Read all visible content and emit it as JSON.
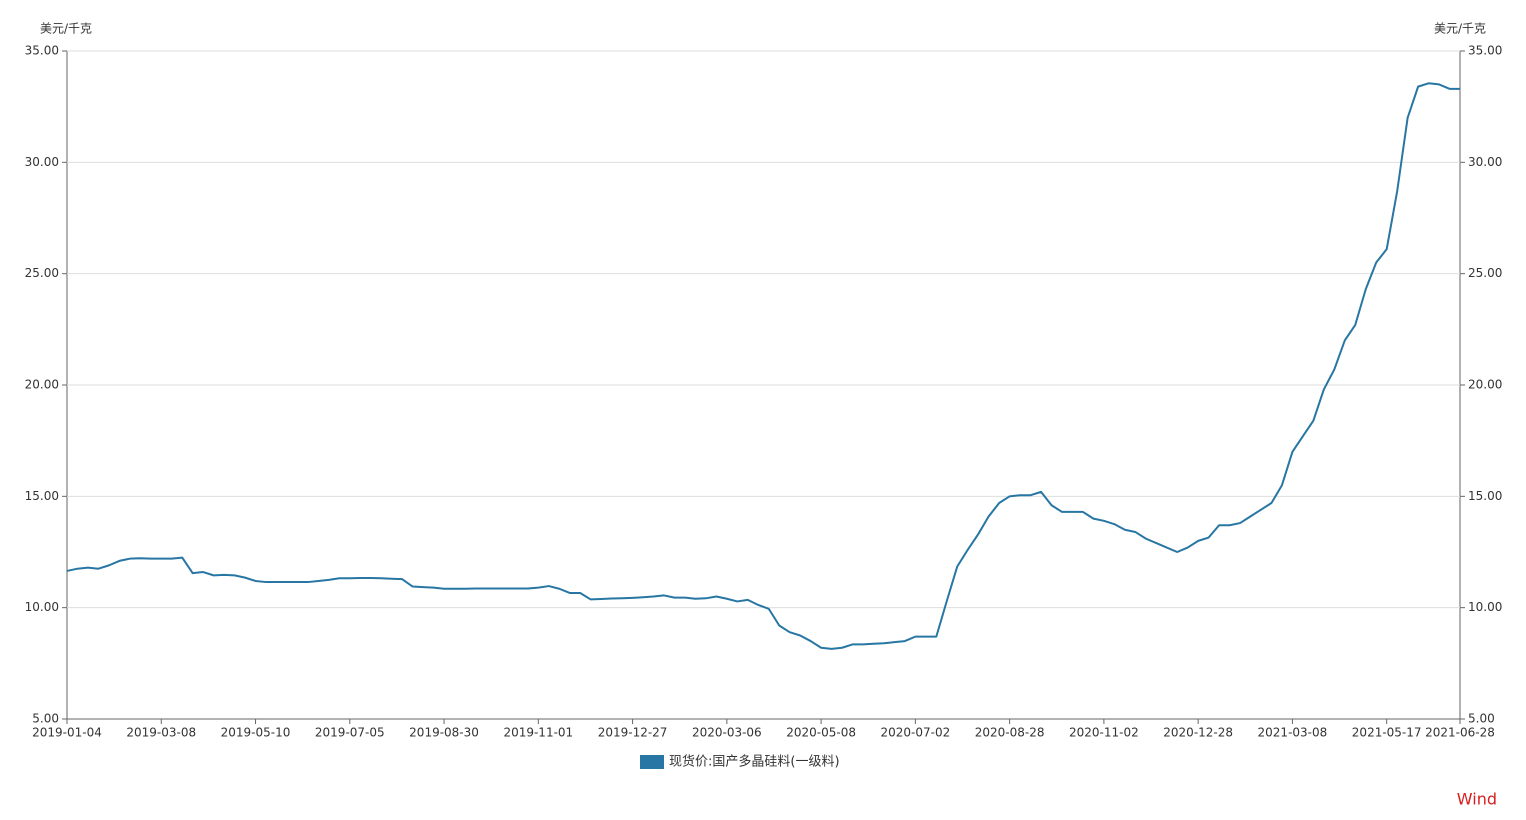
{
  "chart_data": {
    "type": "line",
    "y_unit": "美元/千克",
    "y2_unit": "美元/千克",
    "watermark": "Wind",
    "categories": [
      "2019-01-04",
      null,
      null,
      null,
      null,
      null,
      null,
      null,
      null,
      "2019-03-08",
      null,
      null,
      null,
      null,
      null,
      null,
      null,
      null,
      "2019-05-10",
      null,
      null,
      null,
      null,
      null,
      null,
      null,
      null,
      "2019-07-05",
      null,
      null,
      null,
      null,
      null,
      null,
      null,
      null,
      "2019-08-30",
      null,
      null,
      null,
      null,
      null,
      null,
      null,
      null,
      "2019-11-01",
      null,
      null,
      null,
      null,
      null,
      null,
      null,
      null,
      "2019-12-27",
      null,
      null,
      null,
      null,
      null,
      null,
      null,
      null,
      "2020-03-06",
      null,
      null,
      null,
      null,
      null,
      null,
      null,
      null,
      "2020-05-08",
      null,
      null,
      null,
      null,
      null,
      null,
      null,
      null,
      "2020-07-02",
      null,
      null,
      null,
      null,
      null,
      null,
      null,
      null,
      "2020-08-28",
      null,
      null,
      null,
      null,
      null,
      null,
      null,
      null,
      "2020-11-02",
      null,
      null,
      null,
      null,
      null,
      null,
      null,
      null,
      "2020-12-28",
      null,
      null,
      null,
      null,
      null,
      null,
      null,
      null,
      "2021-03-08",
      null,
      null,
      null,
      null,
      null,
      null,
      null,
      null,
      "2021-05-17",
      null,
      null,
      null,
      null,
      null,
      null,
      "2021-06-28"
    ],
    "series": [
      {
        "name": "现货价:国产多晶硅料(一级料)",
        "color": "#2776a3",
        "values": [
          11.65,
          11.75,
          11.8,
          11.75,
          11.9,
          12.1,
          12.2,
          12.22,
          12.2,
          12.2,
          12.2,
          12.25,
          11.55,
          11.6,
          11.45,
          11.47,
          11.45,
          11.35,
          11.2,
          11.15,
          11.15,
          11.15,
          11.15,
          11.15,
          11.2,
          11.25,
          11.32,
          11.32,
          11.33,
          11.33,
          11.32,
          11.3,
          11.28,
          10.95,
          10.92,
          10.9,
          10.85,
          10.85,
          10.85,
          10.86,
          10.86,
          10.86,
          10.86,
          10.86,
          10.86,
          10.9,
          10.97,
          10.85,
          10.66,
          10.66,
          10.37,
          10.39,
          10.41,
          10.42,
          10.44,
          10.47,
          10.5,
          10.55,
          10.45,
          10.45,
          10.4,
          10.42,
          10.5,
          10.4,
          10.28,
          10.35,
          10.12,
          9.95,
          9.2,
          8.9,
          8.75,
          8.5,
          8.2,
          8.15,
          8.2,
          8.35,
          8.35,
          8.38,
          8.4,
          8.45,
          8.5,
          8.7,
          8.7,
          8.7,
          10.3,
          11.85,
          12.6,
          13.3,
          14.1,
          14.7,
          15.0,
          15.05,
          15.05,
          15.2,
          14.6,
          14.3,
          14.3,
          14.3,
          14.0,
          13.9,
          13.75,
          13.5,
          13.4,
          13.1,
          12.9,
          12.7,
          12.5,
          12.7,
          13.0,
          13.15,
          13.7,
          13.7,
          13.8,
          14.1,
          14.4,
          14.7,
          15.5,
          17.0,
          17.7,
          18.4,
          19.8,
          20.7,
          22.0,
          22.7,
          24.3,
          25.5,
          26.1,
          28.7,
          32.0,
          33.4,
          33.55,
          33.5,
          33.3,
          33.3
        ]
      }
    ],
    "ylim": [
      5,
      35
    ],
    "yticks": [
      {
        "value": 5,
        "label": "5.00"
      },
      {
        "value": 10,
        "label": "10.00"
      },
      {
        "value": 15,
        "label": "15.00"
      },
      {
        "value": 20,
        "label": "20.00"
      },
      {
        "value": 25,
        "label": "25.00"
      },
      {
        "value": 30,
        "label": "30.00"
      },
      {
        "value": 35,
        "label": "35.00"
      }
    ],
    "y2lim": [
      5,
      35
    ],
    "y2ticks": [
      {
        "value": 5,
        "label": "5.00"
      },
      {
        "value": 10,
        "label": "10.00"
      },
      {
        "value": 15,
        "label": "15.00"
      },
      {
        "value": 20,
        "label": "20.00"
      },
      {
        "value": 25,
        "label": "25.00"
      },
      {
        "value": 30,
        "label": "30.00"
      },
      {
        "value": 35,
        "label": "35.00"
      }
    ],
    "grid": true,
    "legend": "bottom"
  }
}
